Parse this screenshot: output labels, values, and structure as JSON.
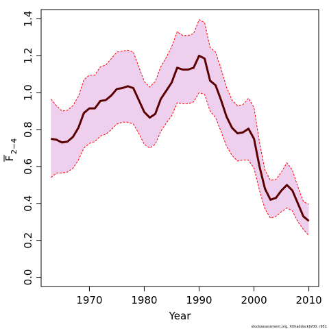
{
  "chart_data": {
    "type": "line",
    "xlabel": "Year",
    "ylabel": "F",
    "ylabel_subscript": "2−4",
    "x_ticks": [
      1970,
      1980,
      1990,
      2000,
      2010
    ],
    "y_ticks": [
      "0.0",
      "0.2",
      "0.4",
      "0.6",
      "0.8",
      "1.0",
      "1.2",
      "1.4"
    ],
    "xlim": [
      1961.2,
      2011.8
    ],
    "ylim": [
      -0.05,
      1.45
    ],
    "grid": false,
    "credit": "stockassessment.org, XXhaddock(V00, r951",
    "colors": {
      "line": "#5a0000",
      "band_fill": "#eecfee",
      "band_edge": "#ff0000"
    },
    "x": [
      1963,
      1964,
      1965,
      1966,
      1967,
      1968,
      1969,
      1970,
      1971,
      1972,
      1973,
      1974,
      1975,
      1976,
      1977,
      1978,
      1979,
      1980,
      1981,
      1982,
      1983,
      1984,
      1985,
      1986,
      1987,
      1988,
      1989,
      1990,
      1991,
      1992,
      1993,
      1994,
      1995,
      1996,
      1997,
      1998,
      1999,
      2000,
      2001,
      2002,
      2003,
      2004,
      2005,
      2006,
      2007,
      2008,
      2009,
      2010
    ],
    "series": [
      {
        "name": "",
        "role": "estimate",
        "values": [
          0.75,
          0.745,
          0.73,
          0.735,
          0.76,
          0.81,
          0.89,
          0.915,
          0.915,
          0.955,
          0.96,
          0.985,
          1.02,
          1.025,
          1.035,
          1.025,
          0.96,
          0.895,
          0.865,
          0.885,
          0.965,
          1.01,
          1.055,
          1.135,
          1.125,
          1.125,
          1.135,
          1.2,
          1.185,
          1.065,
          1.04,
          0.96,
          0.87,
          0.81,
          0.78,
          0.785,
          0.805,
          0.75,
          0.6,
          0.48,
          0.42,
          0.43,
          0.47,
          0.5,
          0.47,
          0.4,
          0.33,
          0.305
        ]
      },
      {
        "name": "",
        "role": "upper",
        "values": [
          0.965,
          0.93,
          0.9,
          0.905,
          0.93,
          0.98,
          1.07,
          1.095,
          1.095,
          1.14,
          1.15,
          1.185,
          1.22,
          1.225,
          1.23,
          1.22,
          1.14,
          1.06,
          1.03,
          1.06,
          1.14,
          1.19,
          1.25,
          1.33,
          1.31,
          1.31,
          1.32,
          1.395,
          1.38,
          1.245,
          1.22,
          1.13,
          1.03,
          0.96,
          0.93,
          0.935,
          0.97,
          0.92,
          0.73,
          0.58,
          0.525,
          0.53,
          0.57,
          0.62,
          0.58,
          0.49,
          0.41,
          0.395
        ]
      },
      {
        "name": "",
        "role": "lower",
        "values": [
          0.54,
          0.565,
          0.565,
          0.57,
          0.59,
          0.635,
          0.7,
          0.725,
          0.735,
          0.765,
          0.775,
          0.8,
          0.83,
          0.84,
          0.84,
          0.83,
          0.78,
          0.72,
          0.7,
          0.72,
          0.79,
          0.835,
          0.875,
          0.945,
          0.94,
          0.94,
          0.95,
          1.0,
          0.99,
          0.9,
          0.865,
          0.79,
          0.71,
          0.66,
          0.63,
          0.635,
          0.635,
          0.59,
          0.47,
          0.37,
          0.32,
          0.33,
          0.355,
          0.375,
          0.36,
          0.3,
          0.26,
          0.225
        ]
      }
    ]
  }
}
